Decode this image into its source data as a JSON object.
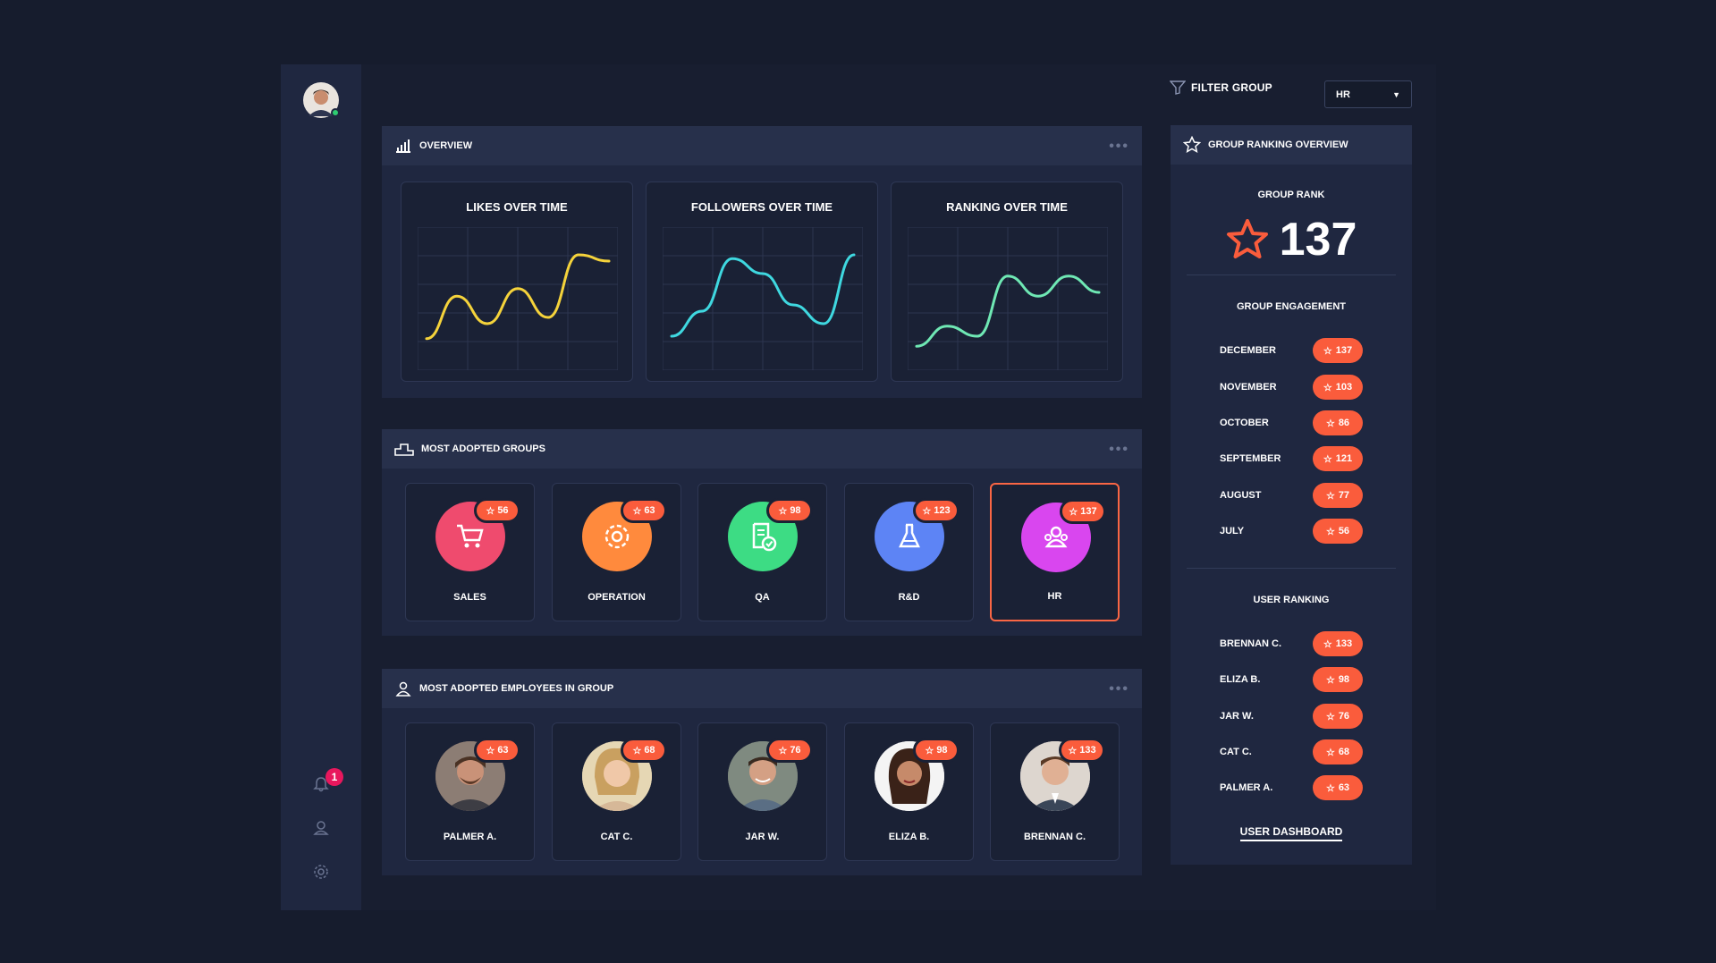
{
  "sidebar": {
    "notification_count": "1",
    "icons": [
      "bell-icon",
      "user-icon",
      "gear-icon"
    ]
  },
  "filter": {
    "label": "FILTER GROUP",
    "selected": "HR"
  },
  "overview": {
    "title": "OVERVIEW",
    "charts": [
      {
        "title": "LIKES OVER TIME",
        "color": "#f5d33b"
      },
      {
        "title": "FOLLOWERS OVER TIME",
        "color": "#3fd8e0"
      },
      {
        "title": "RANKING OVER TIME",
        "color": "#6fe8b4"
      }
    ]
  },
  "chart_data": [
    {
      "type": "line",
      "title": "LIKES OVER TIME",
      "series": [
        {
          "values": [
            18,
            52,
            30,
            58,
            35,
            85,
            80
          ]
        }
      ],
      "ylim": [
        0,
        100
      ]
    },
    {
      "type": "line",
      "title": "FOLLOWERS OVER TIME",
      "series": [
        {
          "values": [
            20,
            40,
            82,
            70,
            45,
            30,
            85
          ]
        }
      ],
      "ylim": [
        0,
        100
      ]
    },
    {
      "type": "line",
      "title": "RANKING OVER TIME",
      "series": [
        {
          "values": [
            12,
            28,
            20,
            68,
            52,
            68,
            55
          ]
        }
      ],
      "ylim": [
        0,
        100
      ]
    }
  ],
  "groups": {
    "title": "MOST ADOPTED GROUPS",
    "items": [
      {
        "label": "SALES",
        "score": "56",
        "color": "#ef4b6e",
        "icon": "cart-icon"
      },
      {
        "label": "OPERATION",
        "score": "63",
        "color": "#ff8a3d",
        "icon": "gear-icon"
      },
      {
        "label": "QA",
        "score": "98",
        "color": "#3ddc84",
        "icon": "document-check-icon"
      },
      {
        "label": "R&D",
        "score": "123",
        "color": "#5d84f5",
        "icon": "flask-icon"
      },
      {
        "label": "HR",
        "score": "137",
        "color": "#d946ef",
        "icon": "people-icon"
      }
    ]
  },
  "employees": {
    "title": "MOST ADOPTED EMPLOYEES IN GROUP",
    "items": [
      {
        "label": "PALMER A.",
        "score": "63"
      },
      {
        "label": "CAT C.",
        "score": "68"
      },
      {
        "label": "JAR W.",
        "score": "76"
      },
      {
        "label": "ELIZA B.",
        "score": "98"
      },
      {
        "label": "BRENNAN C.",
        "score": "133"
      }
    ]
  },
  "ranking": {
    "title": "GROUP RANKING OVERVIEW",
    "group_rank_label": "GROUP RANK",
    "group_rank": "137",
    "engagement_title": "GROUP ENGAGEMENT",
    "engagement": [
      {
        "month": "DECEMBER",
        "score": "137"
      },
      {
        "month": "NOVEMBER",
        "score": "103"
      },
      {
        "month": "OCTOBER",
        "score": "86"
      },
      {
        "month": "SEPTEMBER",
        "score": "121"
      },
      {
        "month": "AUGUST",
        "score": "77"
      },
      {
        "month": "JULY",
        "score": "56"
      }
    ],
    "user_ranking_title": "USER RANKING",
    "users": [
      {
        "name": "BRENNAN C.",
        "score": "133"
      },
      {
        "name": "ELIZA B.",
        "score": "98"
      },
      {
        "name": "JAR W.",
        "score": "76"
      },
      {
        "name": "CAT C.",
        "score": "68"
      },
      {
        "name": "PALMER A.",
        "score": "63"
      }
    ],
    "dashboard_link": "USER DASHBOARD"
  }
}
